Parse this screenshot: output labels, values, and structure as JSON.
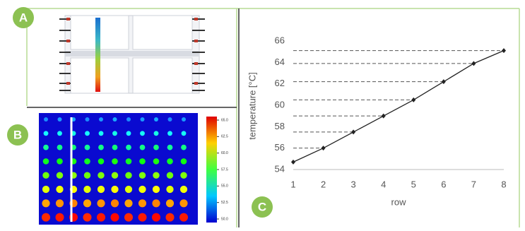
{
  "panels": [
    {
      "label": "A"
    },
    {
      "label": "B"
    },
    {
      "label": "C"
    }
  ],
  "heatmap": {
    "colorbar_ticks": [
      {
        "value": 65,
        "label": "65.0"
      },
      {
        "value": 62.5,
        "label": "62.5"
      },
      {
        "value": 60,
        "label": "60.0"
      },
      {
        "value": 57.5,
        "label": "57.5"
      },
      {
        "value": 55,
        "label": "55.0"
      },
      {
        "value": 52.5,
        "label": "52.5"
      },
      {
        "value": 50,
        "label": "50.0"
      }
    ]
  },
  "chart_data": {
    "type": "line",
    "x_label": "row",
    "y_label": "temperature [°C]",
    "x": [
      1,
      2,
      3,
      4,
      5,
      6,
      7,
      8
    ],
    "values": [
      54.7,
      56.0,
      57.5,
      59.0,
      60.5,
      62.2,
      63.9,
      65.1
    ],
    "color": "#222222",
    "xlim": [
      1,
      8
    ],
    "ylim": [
      54,
      66
    ],
    "xticks": [
      1,
      2,
      3,
      4,
      5,
      6,
      7,
      8
    ],
    "yticks": [
      54,
      56,
      58,
      60,
      62,
      64,
      66
    ],
    "guide_lines": true
  }
}
